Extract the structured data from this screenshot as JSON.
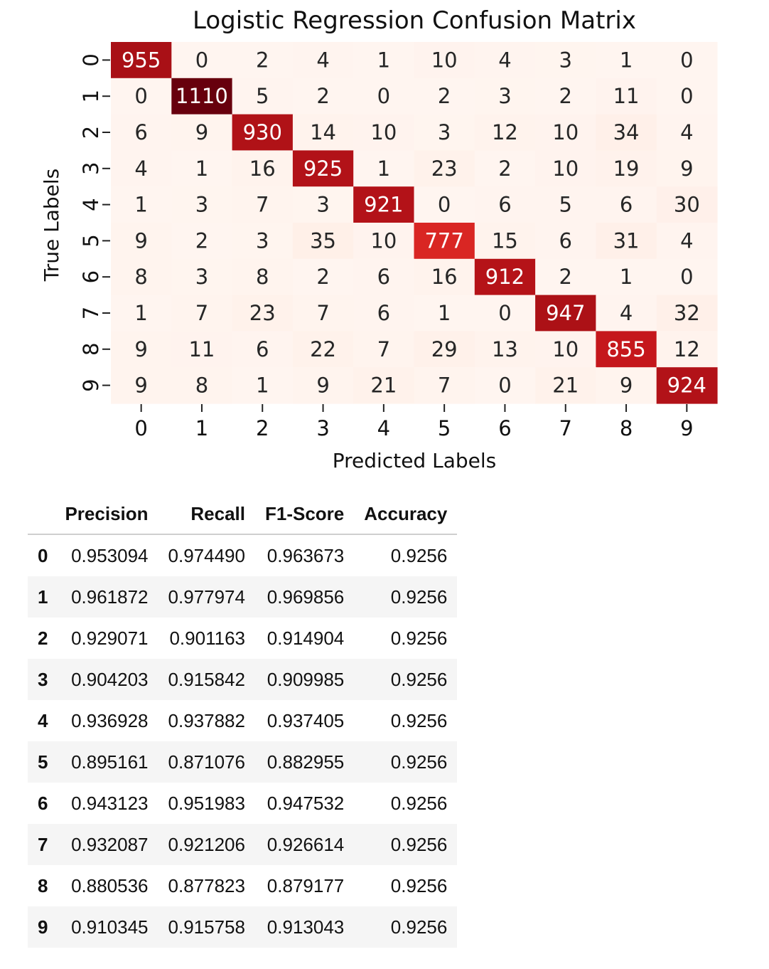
{
  "chart_data": [
    {
      "type": "heatmap",
      "title": "Logistic Regression Confusion Matrix",
      "xlabel": "Predicted Labels",
      "ylabel": "True Labels",
      "x_categories": [
        "0",
        "1",
        "2",
        "3",
        "4",
        "5",
        "6",
        "7",
        "8",
        "9"
      ],
      "y_categories": [
        "0",
        "1",
        "2",
        "3",
        "4",
        "5",
        "6",
        "7",
        "8",
        "9"
      ],
      "colormap": "Reds",
      "colorbar": false,
      "values": [
        [
          955,
          0,
          2,
          4,
          1,
          10,
          4,
          3,
          1,
          0
        ],
        [
          0,
          1110,
          5,
          2,
          0,
          2,
          3,
          2,
          11,
          0
        ],
        [
          6,
          9,
          930,
          14,
          10,
          3,
          12,
          10,
          34,
          4
        ],
        [
          4,
          1,
          16,
          925,
          1,
          23,
          2,
          10,
          19,
          9
        ],
        [
          1,
          3,
          7,
          3,
          921,
          0,
          6,
          5,
          6,
          30
        ],
        [
          9,
          2,
          3,
          35,
          10,
          777,
          15,
          6,
          31,
          4
        ],
        [
          8,
          3,
          8,
          2,
          6,
          16,
          912,
          2,
          1,
          0
        ],
        [
          1,
          7,
          23,
          7,
          6,
          1,
          0,
          947,
          4,
          32
        ],
        [
          9,
          11,
          6,
          22,
          7,
          29,
          13,
          10,
          855,
          12
        ],
        [
          9,
          8,
          1,
          9,
          21,
          7,
          0,
          21,
          9,
          924
        ]
      ],
      "value_range": [
        0,
        1110
      ]
    },
    {
      "type": "table",
      "columns": [
        "Precision",
        "Recall",
        "F1-Score",
        "Accuracy"
      ],
      "rows": [
        {
          "index": "0",
          "cells": [
            "0.953094",
            "0.974490",
            "0.963673",
            "0.9256"
          ]
        },
        {
          "index": "1",
          "cells": [
            "0.961872",
            "0.977974",
            "0.969856",
            "0.9256"
          ]
        },
        {
          "index": "2",
          "cells": [
            "0.929071",
            "0.901163",
            "0.914904",
            "0.9256"
          ]
        },
        {
          "index": "3",
          "cells": [
            "0.904203",
            "0.915842",
            "0.909985",
            "0.9256"
          ]
        },
        {
          "index": "4",
          "cells": [
            "0.936928",
            "0.937882",
            "0.937405",
            "0.9256"
          ]
        },
        {
          "index": "5",
          "cells": [
            "0.895161",
            "0.871076",
            "0.882955",
            "0.9256"
          ]
        },
        {
          "index": "6",
          "cells": [
            "0.943123",
            "0.951983",
            "0.947532",
            "0.9256"
          ]
        },
        {
          "index": "7",
          "cells": [
            "0.932087",
            "0.921206",
            "0.926614",
            "0.9256"
          ]
        },
        {
          "index": "8",
          "cells": [
            "0.880536",
            "0.877823",
            "0.879177",
            "0.9256"
          ]
        },
        {
          "index": "9",
          "cells": [
            "0.910345",
            "0.915758",
            "0.913043",
            "0.9256"
          ]
        }
      ]
    }
  ]
}
